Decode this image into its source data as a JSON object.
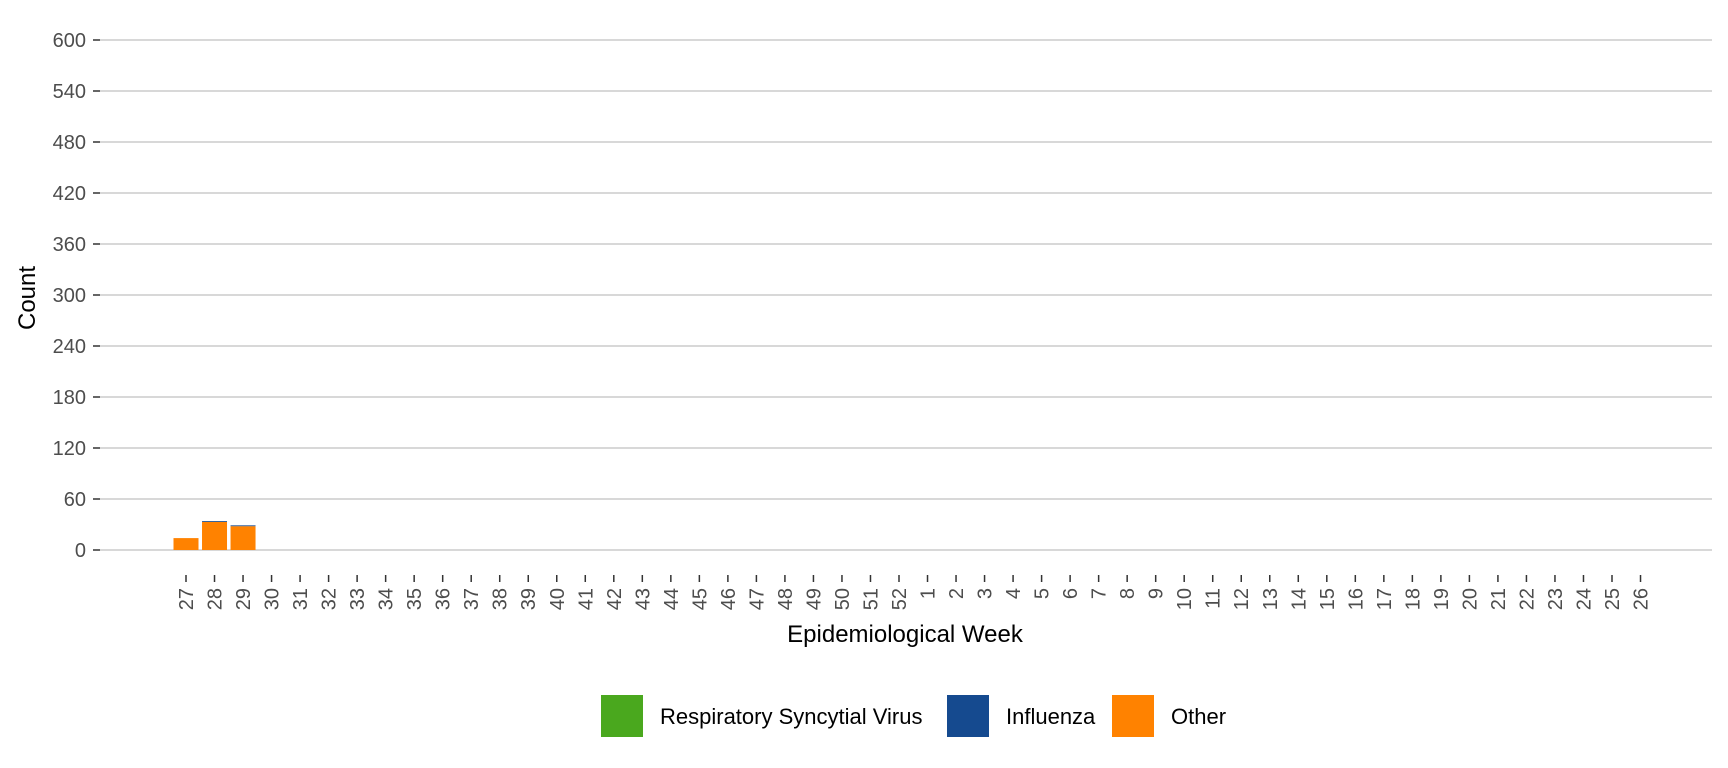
{
  "chart_data": {
    "type": "bar",
    "stacked": true,
    "title": "",
    "xlabel": "Epidemiological Week",
    "ylabel": "Count",
    "ylim": [
      0,
      600
    ],
    "yticks": [
      0,
      60,
      120,
      180,
      240,
      300,
      360,
      420,
      480,
      540,
      600
    ],
    "grid": true,
    "legend_position": "bottom",
    "categories": [
      "27",
      "28",
      "29",
      "30",
      "31",
      "32",
      "33",
      "34",
      "35",
      "36",
      "37",
      "38",
      "39",
      "40",
      "41",
      "42",
      "43",
      "44",
      "45",
      "46",
      "47",
      "48",
      "49",
      "50",
      "51",
      "52",
      "1",
      "2",
      "3",
      "4",
      "5",
      "6",
      "7",
      "8",
      "9",
      "10",
      "11",
      "12",
      "13",
      "14",
      "15",
      "16",
      "17",
      "18",
      "19",
      "20",
      "21",
      "22",
      "23",
      "24",
      "25",
      "26"
    ],
    "series": [
      {
        "name": "Respiratory Syncytial Virus",
        "color": "#4aa81e",
        "values": [
          0,
          0,
          0,
          null,
          null,
          null,
          null,
          null,
          null,
          null,
          null,
          null,
          null,
          null,
          null,
          null,
          null,
          null,
          null,
          null,
          null,
          null,
          null,
          null,
          null,
          null,
          null,
          null,
          null,
          null,
          null,
          null,
          null,
          null,
          null,
          null,
          null,
          null,
          null,
          null,
          null,
          null,
          null,
          null,
          null,
          null,
          null,
          null,
          null,
          null,
          null,
          null
        ]
      },
      {
        "name": "Influenza",
        "color": "#154a8f",
        "values": [
          0,
          1,
          1,
          null,
          null,
          null,
          null,
          null,
          null,
          null,
          null,
          null,
          null,
          null,
          null,
          null,
          null,
          null,
          null,
          null,
          null,
          null,
          null,
          null,
          null,
          null,
          null,
          null,
          null,
          null,
          null,
          null,
          null,
          null,
          null,
          null,
          null,
          null,
          null,
          null,
          null,
          null,
          null,
          null,
          null,
          null,
          null,
          null,
          null,
          null,
          null,
          null
        ]
      },
      {
        "name": "Other",
        "color": "#ff8200",
        "values": [
          14,
          33,
          28,
          null,
          null,
          null,
          null,
          null,
          null,
          null,
          null,
          null,
          null,
          null,
          null,
          null,
          null,
          null,
          null,
          null,
          null,
          null,
          null,
          null,
          null,
          null,
          null,
          null,
          null,
          null,
          null,
          null,
          null,
          null,
          null,
          null,
          null,
          null,
          null,
          null,
          null,
          null,
          null,
          null,
          null,
          null,
          null,
          null,
          null,
          null,
          null,
          null
        ]
      }
    ]
  }
}
